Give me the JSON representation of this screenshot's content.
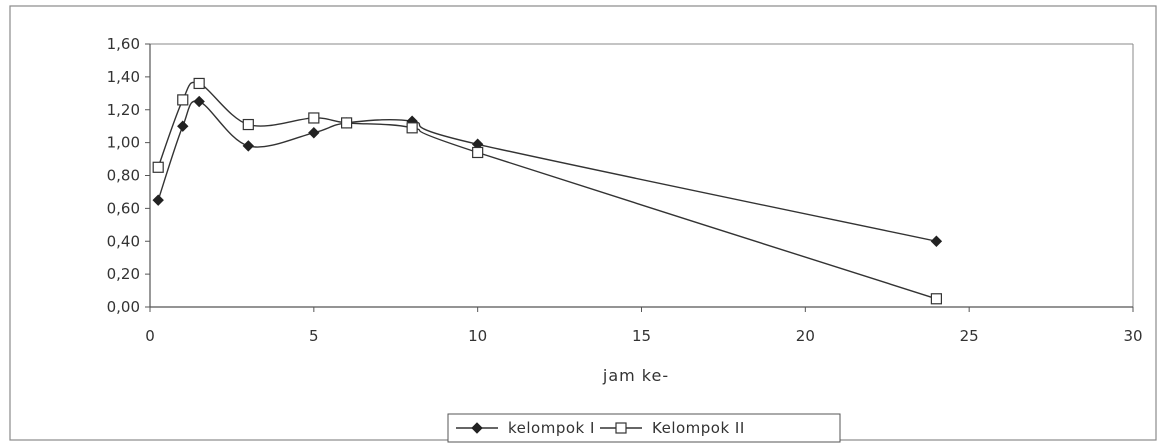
{
  "chart_data": {
    "type": "line",
    "xlabel": "jam ke-",
    "ylabel": "",
    "xlim": [
      0,
      30
    ],
    "ylim": [
      0,
      1.6
    ],
    "x_ticks": [
      0,
      5,
      10,
      15,
      20,
      25,
      30
    ],
    "x_tick_labels": [
      "0",
      "5",
      "10",
      "15",
      "20",
      "25",
      "30"
    ],
    "y_ticks": [
      0,
      0.2,
      0.4,
      0.6,
      0.8,
      1.0,
      1.2,
      1.4,
      1.6
    ],
    "y_tick_labels": [
      "0,00",
      "0,20",
      "0,40",
      "0,60",
      "0,80",
      "1,00",
      "1,20",
      "1,40",
      "1,60"
    ],
    "grid": false,
    "legend_position": "bottom-center",
    "series": [
      {
        "name": "kelompok I",
        "marker": "filled-diamond",
        "color": "#333333",
        "x": [
          0.25,
          1,
          1.5,
          3,
          5,
          6,
          8,
          10,
          24
        ],
        "y": [
          0.65,
          1.1,
          1.25,
          0.98,
          1.06,
          1.12,
          1.13,
          0.99,
          0.4
        ]
      },
      {
        "name": "Kelompok II",
        "marker": "open-square",
        "color": "#333333",
        "x": [
          0.25,
          1,
          1.5,
          3,
          5,
          6,
          8,
          10,
          24
        ],
        "y": [
          0.85,
          1.26,
          1.36,
          1.11,
          1.15,
          1.12,
          1.09,
          0.94,
          0.05
        ]
      }
    ]
  }
}
